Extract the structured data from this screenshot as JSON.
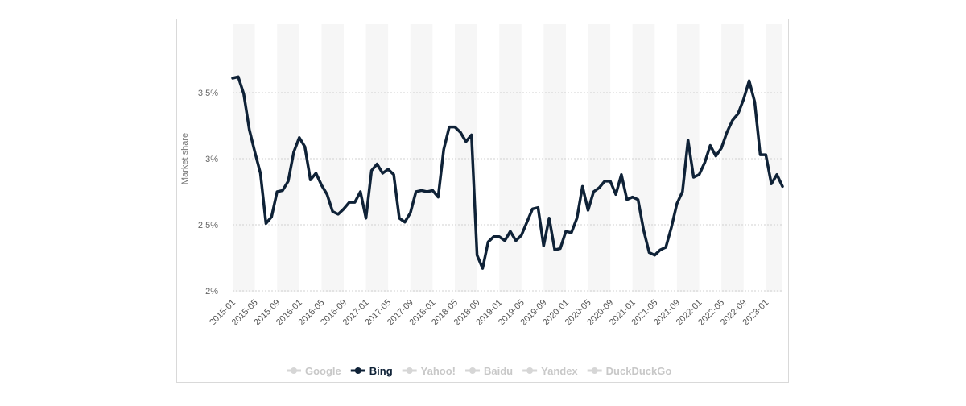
{
  "chart_data": {
    "type": "line",
    "title": "",
    "xlabel": "",
    "ylabel": "Market share",
    "ylim": [
      2.0,
      3.7
    ],
    "yticks": [
      2.0,
      2.5,
      3.0,
      3.5
    ],
    "ytick_labels": [
      "2%",
      "2.5%",
      "3%",
      "3.5%"
    ],
    "xtick_labels": [
      "2015-01",
      "2015-05",
      "2015-09",
      "2016-01",
      "2016-05",
      "2016-09",
      "2017-01",
      "2017-05",
      "2017-09",
      "2018-01",
      "2018-05",
      "2018-09",
      "2019-01",
      "2019-05",
      "2019-09",
      "2020-01",
      "2020-05",
      "2020-09",
      "2021-01",
      "2021-05",
      "2021-09",
      "2022-01",
      "2022-05",
      "2022-09",
      "2023-01"
    ],
    "grid": true,
    "legend_position": "bottom",
    "x_start": "2015-01",
    "series": [
      {
        "name": "Bing",
        "color": "#0f2237",
        "values": [
          3.61,
          3.62,
          3.49,
          3.22,
          3.05,
          2.89,
          2.51,
          2.56,
          2.75,
          2.76,
          2.83,
          3.05,
          3.16,
          3.09,
          2.84,
          2.89,
          2.8,
          2.73,
          2.6,
          2.58,
          2.62,
          2.67,
          2.67,
          2.75,
          2.55,
          2.91,
          2.96,
          2.89,
          2.92,
          2.88,
          2.55,
          2.52,
          2.59,
          2.75,
          2.76,
          2.75,
          2.76,
          2.71,
          3.07,
          3.24,
          3.24,
          3.2,
          3.13,
          3.18,
          2.27,
          2.17,
          2.37,
          2.41,
          2.41,
          2.38,
          2.45,
          2.38,
          2.42,
          2.52,
          2.62,
          2.63,
          2.34,
          2.55,
          2.31,
          2.32,
          2.45,
          2.44,
          2.55,
          2.79,
          2.61,
          2.75,
          2.78,
          2.83,
          2.83,
          2.73,
          2.88,
          2.69,
          2.71,
          2.69,
          2.46,
          2.29,
          2.27,
          2.31,
          2.33,
          2.48,
          2.66,
          2.75,
          3.14,
          2.86,
          2.88,
          2.97,
          3.1,
          3.02,
          3.08,
          3.2,
          3.29,
          3.34,
          3.45,
          3.59,
          3.43,
          3.03,
          3.03,
          2.81,
          2.88,
          2.79
        ]
      }
    ],
    "legend": [
      {
        "name": "Google",
        "color": "#d6d6d6",
        "active": false
      },
      {
        "name": "Bing",
        "color": "#0f2237",
        "active": true
      },
      {
        "name": "Yahoo!",
        "color": "#d6d6d6",
        "active": false
      },
      {
        "name": "Baidu",
        "color": "#d6d6d6",
        "active": false
      },
      {
        "name": "Yandex",
        "color": "#d6d6d6",
        "active": false
      },
      {
        "name": "DuckDuckGo",
        "color": "#d6d6d6",
        "active": false
      }
    ]
  }
}
